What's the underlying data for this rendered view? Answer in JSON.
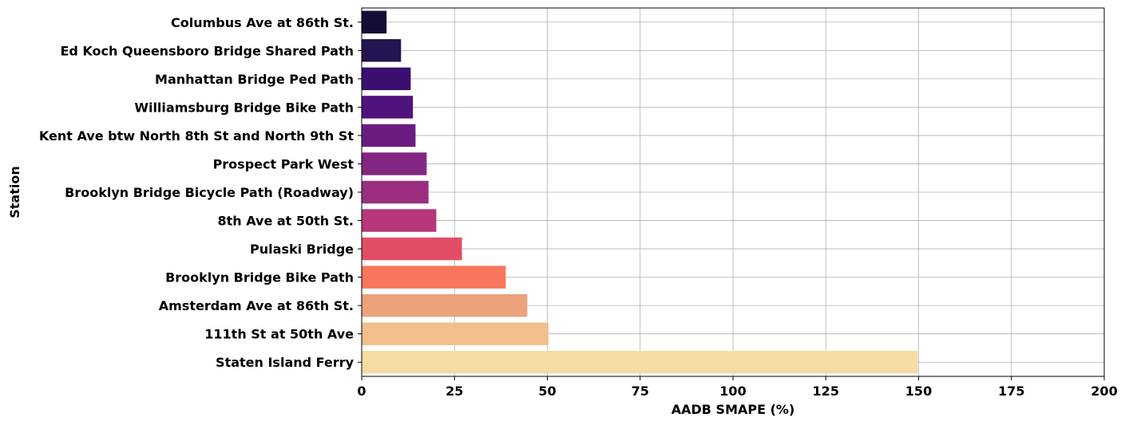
{
  "chart_data": {
    "type": "bar",
    "orientation": "horizontal",
    "xlabel": "AADB SMAPE (%)",
    "ylabel": "Station",
    "xlim": [
      0,
      200
    ],
    "xticks": [
      "0",
      "25",
      "50",
      "75",
      "100",
      "125",
      "150",
      "175",
      "200"
    ],
    "grid": true,
    "categories": [
      "Columbus Ave at 86th St.",
      "Ed Koch Queensboro Bridge Shared Path",
      "Manhattan Bridge Ped Path",
      "Williamsburg Bridge Bike Path",
      "Kent Ave btw North 8th St and North 9th St",
      "Prospect Park West",
      "Brooklyn Bridge Bicycle Path (Roadway)",
      "8th Ave at 50th St.",
      "Pulaski Bridge",
      "Brooklyn Bridge Bike Path",
      "Amsterdam Ave at 86th St.",
      "111th St at 50th Ave",
      "Staten Island Ferry"
    ],
    "values": [
      6.7,
      10.6,
      13.2,
      13.8,
      14.5,
      17.5,
      18.0,
      20.1,
      27.0,
      38.8,
      44.6,
      50.3,
      149.8
    ],
    "colors": [
      "#140e36",
      "#241451",
      "#3b0f70",
      "#51127c",
      "#6a1c81",
      "#822681",
      "#9b2e7e",
      "#b73779",
      "#e24d65",
      "#f8765c",
      "#eba27a",
      "#f2be8b",
      "#f4dca4"
    ]
  }
}
